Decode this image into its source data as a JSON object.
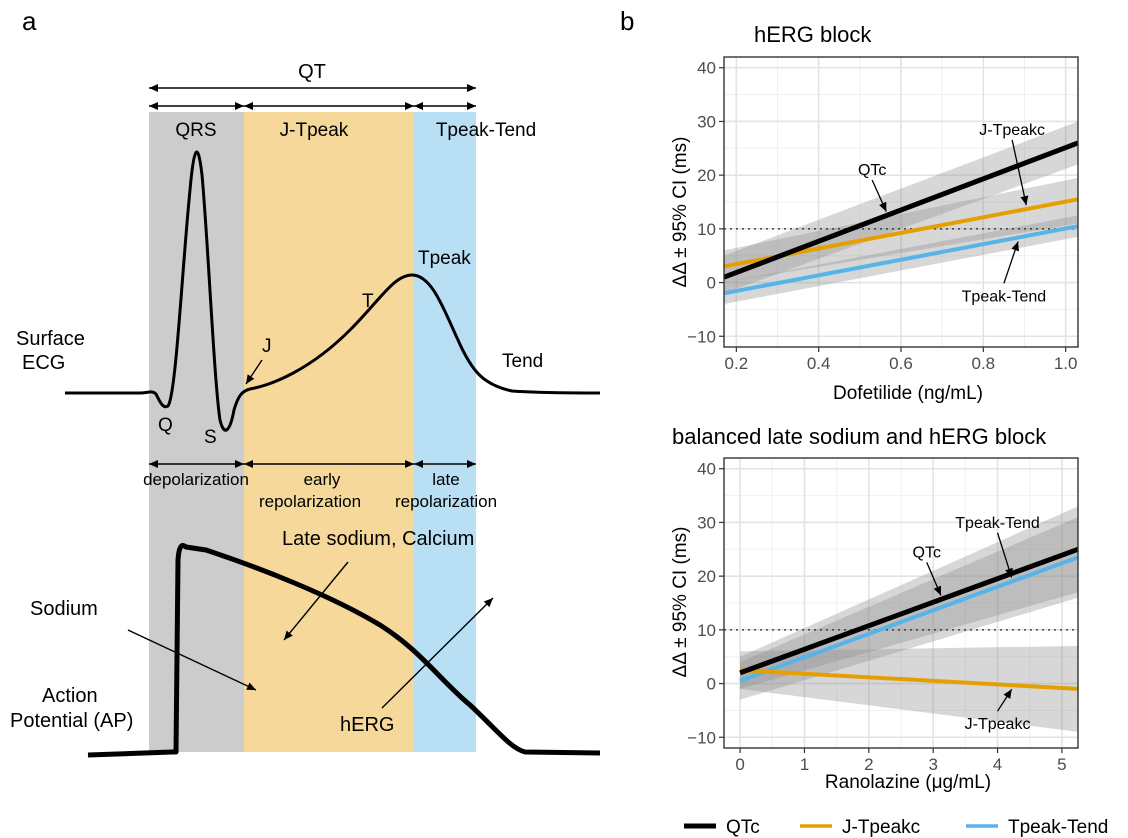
{
  "panel_a": {
    "label": "a",
    "qt_label": "QT",
    "segments": {
      "qrs": "QRS",
      "jtpeak": "J-Tpeak",
      "tpeaktend": "Tpeak-Tend"
    },
    "ecg_labels": {
      "surface_line1": "Surface",
      "surface_line2": "ECG",
      "q": "Q",
      "s": "S",
      "j": "J",
      "t": "T",
      "tpeak": "Tpeak",
      "tend": "Tend"
    },
    "phases": {
      "depolarization": "depolarization",
      "early_line1": "early",
      "early_line2": "repolarization",
      "late_line1": "late",
      "late_line2": "repolarization"
    },
    "ap_labels": {
      "late_sodium": "Late sodium, Calcium",
      "sodium": "Sodium",
      "herg": "hERG",
      "ap_line1": "Action",
      "ap_line2": "Potential (AP)"
    },
    "colors": {
      "qrs_band": "#cccccc",
      "jtpeak_band": "#f5d89a",
      "tpeaktend_band": "#b9dff4"
    }
  },
  "panel_b_label": "b",
  "legend": [
    {
      "name": "QTc",
      "color": "#000000"
    },
    {
      "name": "J-Tpeakc",
      "color": "#e69f00"
    },
    {
      "name": "Tpeak-Tend",
      "color": "#56b4e9"
    }
  ],
  "chart_data": [
    {
      "type": "line",
      "title": "hERG block",
      "xlabel": "Dofetilide (ng/mL)",
      "ylabel": "ΔΔ ± 95% CI (ms)",
      "xlim": [
        0.17,
        1.03
      ],
      "ylim": [
        -12,
        42
      ],
      "xticks": [
        0.2,
        0.4,
        0.6,
        0.8,
        1.0
      ],
      "xtick_labels": [
        "0.2",
        "0.4",
        "0.6",
        "0.8",
        "1.0"
      ],
      "yticks": [
        -10,
        0,
        10,
        20,
        30,
        40
      ],
      "ytick_labels": [
        "−10",
        "0",
        "10",
        "20",
        "30",
        "40"
      ],
      "reference_line": 10,
      "grid": true,
      "series": [
        {
          "name": "QTc",
          "color": "#000000",
          "x": [
            0.17,
            1.03
          ],
          "y": [
            1,
            26
          ],
          "ci_low": [
            -2,
            22
          ],
          "ci_high": [
            5,
            30
          ]
        },
        {
          "name": "J-Tpeakc",
          "color": "#e69f00",
          "x": [
            0.17,
            1.03
          ],
          "y": [
            3,
            15.5
          ],
          "ci_low": [
            0,
            11
          ],
          "ci_high": [
            6,
            19.5
          ]
        },
        {
          "name": "Tpeak-Tend",
          "color": "#56b4e9",
          "x": [
            0.17,
            1.03
          ],
          "y": [
            -2,
            10.5
          ],
          "ci_low": [
            -4,
            8.5
          ],
          "ci_high": [
            0,
            12.5
          ]
        }
      ],
      "annotations": [
        {
          "text": "J-Tpeakc",
          "x": 0.87,
          "y": 27.5
        },
        {
          "text": "QTc",
          "x": 0.53,
          "y": 20
        },
        {
          "text": "Tpeak-Tend",
          "x": 0.85,
          "y": -3.5
        }
      ]
    },
    {
      "type": "line",
      "title": "balanced late sodium and hERG block",
      "xlabel": "Ranolazine (μg/mL)",
      "ylabel": "ΔΔ ± 95% CI (ms)",
      "xlim": [
        -0.25,
        5.25
      ],
      "ylim": [
        -12,
        42
      ],
      "xticks": [
        0,
        1,
        2,
        3,
        4,
        5
      ],
      "xtick_labels": [
        "0",
        "1",
        "2",
        "3",
        "4",
        "5"
      ],
      "yticks": [
        -10,
        0,
        10,
        20,
        30,
        40
      ],
      "ytick_labels": [
        "−10",
        "0",
        "10",
        "20",
        "30",
        "40"
      ],
      "reference_line": 10,
      "grid": true,
      "series": [
        {
          "name": "QTc",
          "color": "#000000",
          "x": [
            0,
            5.25
          ],
          "y": [
            2,
            25
          ],
          "ci_low": [
            -1,
            17
          ],
          "ci_high": [
            5,
            33
          ]
        },
        {
          "name": "J-Tpeakc",
          "color": "#e69f00",
          "x": [
            0,
            5.25
          ],
          "y": [
            2.5,
            -1
          ],
          "ci_low": [
            -1,
            -9
          ],
          "ci_high": [
            6,
            7
          ]
        },
        {
          "name": "Tpeak-Tend",
          "color": "#56b4e9",
          "x": [
            0,
            5.25
          ],
          "y": [
            0.5,
            23.5
          ],
          "ci_low": [
            -3,
            16
          ],
          "ci_high": [
            4,
            31
          ]
        }
      ],
      "annotations": [
        {
          "text": "Tpeak-Tend",
          "x": 4.0,
          "y": 29
        },
        {
          "text": "QTc",
          "x": 2.9,
          "y": 23.5
        },
        {
          "text": "J-Tpeakc",
          "x": 4.0,
          "y": -8.5
        }
      ]
    }
  ]
}
